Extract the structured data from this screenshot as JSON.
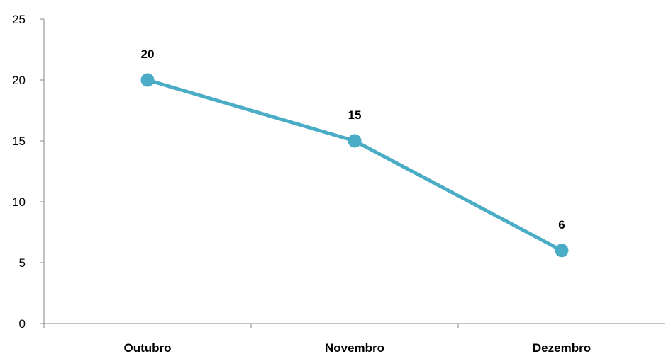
{
  "chart_data": {
    "type": "line",
    "title": "",
    "xlabel": "",
    "ylabel": "",
    "categories": [
      "Outubro",
      "Novembro",
      "Dezembro"
    ],
    "series": [
      {
        "values": [
          20,
          15,
          6
        ],
        "color": "#4BACC6"
      }
    ],
    "ylim": [
      0,
      25
    ],
    "yticks": [
      0,
      5,
      10,
      15,
      20,
      25
    ],
    "grid": false,
    "legend": "none",
    "data_labels": true
  }
}
